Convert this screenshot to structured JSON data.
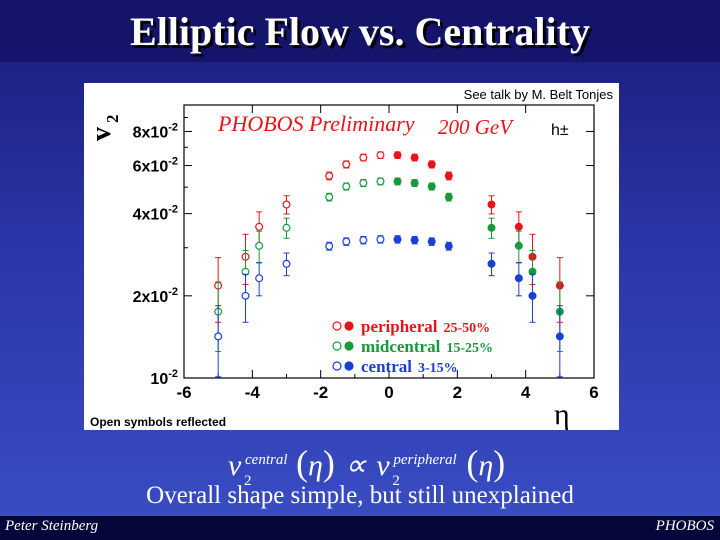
{
  "slide": {
    "title": "Elliptic Flow vs. Centrality",
    "subtitle": "Overall shape simple, but still unexplained",
    "footer_left": "Peter Steinberg",
    "footer_right": "PHOBOS",
    "formula": {
      "left_base": "v",
      "left_sub": "2",
      "left_sup": "central",
      "arg": "η",
      "relation": "∝",
      "right_base": "v",
      "right_sub": "2",
      "right_sup": "peripheral"
    }
  },
  "chart_data": {
    "type": "scatter",
    "credit": "See talk by M. Belt Tonjes",
    "preliminary_label": "PHOBOS Preliminary",
    "energy_label": "200 GeV",
    "particle_label": "h±",
    "note": "Open symbols reflected",
    "xlabel": "η",
    "ylabel_base": "v",
    "ylabel_sub": "2",
    "xlim": [
      -6,
      6
    ],
    "ylim": [
      0.01,
      0.1
    ],
    "yscale": "log",
    "x_ticks": [
      "-6",
      "-4",
      "-2",
      "0",
      "2",
      "4",
      "6"
    ],
    "y_ticks": [
      {
        "value": 0.08,
        "mant": "8x10",
        "exp": "-2"
      },
      {
        "value": 0.06,
        "mant": "6x10",
        "exp": "-2"
      },
      {
        "value": 0.04,
        "mant": "4x10",
        "exp": "-2"
      },
      {
        "value": 0.02,
        "mant": "2x10",
        "exp": "-2"
      },
      {
        "value": 0.01,
        "mant": "10",
        "exp": "-2"
      }
    ],
    "series": [
      {
        "name": "peripheral",
        "range": "25-50%",
        "color": "#e8141c",
        "closed": [
          {
            "x": 0.25,
            "y": 0.0655,
            "e": 0.0018
          },
          {
            "x": 0.75,
            "y": 0.0642,
            "e": 0.0018
          },
          {
            "x": 1.25,
            "y": 0.0606,
            "e": 0.0018
          },
          {
            "x": 1.75,
            "y": 0.055,
            "e": 0.0018
          },
          {
            "x": 3.0,
            "y": 0.0432,
            "e": 0.0033
          },
          {
            "x": 3.8,
            "y": 0.0358,
            "e": 0.0048
          },
          {
            "x": 4.2,
            "y": 0.0278,
            "e": 0.0058
          },
          {
            "x": 5.0,
            "y": 0.0218,
            "e": 0.0058
          }
        ],
        "open": [
          {
            "x": -0.25,
            "y": 0.0655,
            "e": 0.0018
          },
          {
            "x": -0.75,
            "y": 0.0642,
            "e": 0.0018
          },
          {
            "x": -1.25,
            "y": 0.0606,
            "e": 0.0018
          },
          {
            "x": -1.75,
            "y": 0.055,
            "e": 0.0018
          },
          {
            "x": -3.0,
            "y": 0.0432,
            "e": 0.0033
          },
          {
            "x": -3.8,
            "y": 0.0358,
            "e": 0.0048
          },
          {
            "x": -4.2,
            "y": 0.0278,
            "e": 0.0058
          },
          {
            "x": -5.0,
            "y": 0.0218,
            "e": 0.0058
          }
        ]
      },
      {
        "name": "midcentral",
        "range": "15-25%",
        "color": "#189a3a",
        "closed": [
          {
            "x": 0.25,
            "y": 0.0525,
            "e": 0.0015
          },
          {
            "x": 0.75,
            "y": 0.0518,
            "e": 0.0015
          },
          {
            "x": 1.25,
            "y": 0.0503,
            "e": 0.0015
          },
          {
            "x": 1.75,
            "y": 0.046,
            "e": 0.0015
          },
          {
            "x": 3.0,
            "y": 0.0355,
            "e": 0.003
          },
          {
            "x": 3.8,
            "y": 0.0305,
            "e": 0.004
          },
          {
            "x": 4.2,
            "y": 0.0245,
            "e": 0.0048
          },
          {
            "x": 5.0,
            "y": 0.0175,
            "e": 0.005
          }
        ],
        "open": [
          {
            "x": -0.25,
            "y": 0.0525,
            "e": 0.0015
          },
          {
            "x": -0.75,
            "y": 0.0518,
            "e": 0.0015
          },
          {
            "x": -1.25,
            "y": 0.0503,
            "e": 0.0015
          },
          {
            "x": -1.75,
            "y": 0.046,
            "e": 0.0015
          },
          {
            "x": -3.0,
            "y": 0.0355,
            "e": 0.003
          },
          {
            "x": -3.8,
            "y": 0.0305,
            "e": 0.004
          },
          {
            "x": -4.2,
            "y": 0.0245,
            "e": 0.0048
          },
          {
            "x": -5.0,
            "y": 0.0175,
            "e": 0.005
          }
        ]
      },
      {
        "name": "central",
        "range": "3-15%",
        "color": "#1b3fd1",
        "closed": [
          {
            "x": 0.25,
            "y": 0.0322,
            "e": 0.001
          },
          {
            "x": 0.75,
            "y": 0.032,
            "e": 0.001
          },
          {
            "x": 1.25,
            "y": 0.0316,
            "e": 0.001
          },
          {
            "x": 1.75,
            "y": 0.0304,
            "e": 0.001
          },
          {
            "x": 3.0,
            "y": 0.0262,
            "e": 0.0025
          },
          {
            "x": 3.8,
            "y": 0.0232,
            "e": 0.0032
          },
          {
            "x": 4.2,
            "y": 0.02,
            "e": 0.004
          },
          {
            "x": 5.0,
            "y": 0.0142,
            "e": 0.0042
          }
        ],
        "open": [
          {
            "x": -0.25,
            "y": 0.0322,
            "e": 0.001
          },
          {
            "x": -0.75,
            "y": 0.032,
            "e": 0.001
          },
          {
            "x": -1.25,
            "y": 0.0316,
            "e": 0.001
          },
          {
            "x": -1.75,
            "y": 0.0304,
            "e": 0.001
          },
          {
            "x": -3.0,
            "y": 0.0262,
            "e": 0.0025
          },
          {
            "x": -3.8,
            "y": 0.0232,
            "e": 0.0032
          },
          {
            "x": -4.2,
            "y": 0.02,
            "e": 0.004
          },
          {
            "x": -5.0,
            "y": 0.0142,
            "e": 0.0042
          }
        ]
      }
    ]
  }
}
